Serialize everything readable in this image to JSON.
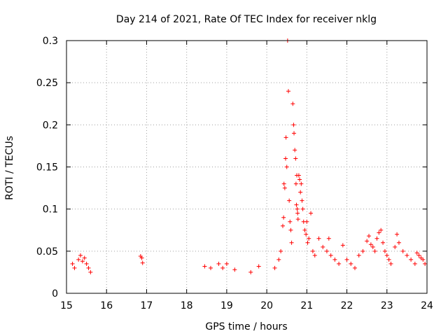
{
  "chart_data": {
    "type": "scatter",
    "title": "Day 214 of 2021, Rate Of TEC Index for receiver nklg",
    "xlabel": "GPS time / hours",
    "ylabel": "ROTI / TECUs",
    "xlim": [
      15,
      24
    ],
    "ylim": [
      0,
      0.3
    ],
    "x_ticks": [
      15,
      16,
      17,
      18,
      19,
      20,
      21,
      22,
      23,
      24
    ],
    "x_tick_labels": [
      "15",
      "16",
      "17",
      "18",
      "19",
      "20",
      "21",
      "22",
      "23",
      "24"
    ],
    "y_ticks": [
      0,
      0.05,
      0.1,
      0.15,
      0.2,
      0.25,
      0.3
    ],
    "y_tick_labels": [
      "0",
      "0.05",
      "0.1",
      "0.15",
      "0.2",
      "0.25",
      "0.3"
    ],
    "grid": true,
    "marker": "+",
    "color": "#ff0000",
    "series": [
      {
        "name": "ROTI",
        "points": [
          [
            15.15,
            0.035
          ],
          [
            15.2,
            0.03
          ],
          [
            15.3,
            0.04
          ],
          [
            15.35,
            0.045
          ],
          [
            15.4,
            0.038
          ],
          [
            15.45,
            0.042
          ],
          [
            15.5,
            0.035
          ],
          [
            15.55,
            0.03
          ],
          [
            15.6,
            0.025
          ],
          [
            16.85,
            0.044
          ],
          [
            16.88,
            0.042
          ],
          [
            16.9,
            0.036
          ],
          [
            18.45,
            0.032
          ],
          [
            18.6,
            0.03
          ],
          [
            18.8,
            0.035
          ],
          [
            18.9,
            0.03
          ],
          [
            19.0,
            0.035
          ],
          [
            19.2,
            0.028
          ],
          [
            19.6,
            0.025
          ],
          [
            19.8,
            0.032
          ],
          [
            20.2,
            0.03
          ],
          [
            20.3,
            0.04
          ],
          [
            20.35,
            0.05
          ],
          [
            20.4,
            0.08
          ],
          [
            20.42,
            0.09
          ],
          [
            20.43,
            0.13
          ],
          [
            20.45,
            0.125
          ],
          [
            20.47,
            0.16
          ],
          [
            20.48,
            0.185
          ],
          [
            20.5,
            0.15
          ],
          [
            20.52,
            0.3
          ],
          [
            20.54,
            0.24
          ],
          [
            20.56,
            0.11
          ],
          [
            20.58,
            0.085
          ],
          [
            20.6,
            0.075
          ],
          [
            20.62,
            0.06
          ],
          [
            20.65,
            0.225
          ],
          [
            20.67,
            0.2
          ],
          [
            20.68,
            0.19
          ],
          [
            20.7,
            0.17
          ],
          [
            20.72,
            0.16
          ],
          [
            20.73,
            0.13
          ],
          [
            20.74,
            0.105
          ],
          [
            20.75,
            0.14
          ],
          [
            20.76,
            0.1
          ],
          [
            20.77,
            0.095
          ],
          [
            20.78,
            0.088
          ],
          [
            20.8,
            0.14
          ],
          [
            20.82,
            0.135
          ],
          [
            20.84,
            0.12
          ],
          [
            20.86,
            0.13
          ],
          [
            20.88,
            0.11
          ],
          [
            20.9,
            0.1
          ],
          [
            20.92,
            0.085
          ],
          [
            20.95,
            0.075
          ],
          [
            20.98,
            0.07
          ],
          [
            21.0,
            0.085
          ],
          [
            21.02,
            0.06
          ],
          [
            21.05,
            0.065
          ],
          [
            21.1,
            0.095
          ],
          [
            21.15,
            0.05
          ],
          [
            21.2,
            0.045
          ],
          [
            21.3,
            0.065
          ],
          [
            21.4,
            0.055
          ],
          [
            21.5,
            0.05
          ],
          [
            21.55,
            0.065
          ],
          [
            21.6,
            0.045
          ],
          [
            21.7,
            0.04
          ],
          [
            21.8,
            0.035
          ],
          [
            21.9,
            0.057
          ],
          [
            22.0,
            0.04
          ],
          [
            22.1,
            0.035
          ],
          [
            22.2,
            0.03
          ],
          [
            22.3,
            0.045
          ],
          [
            22.4,
            0.05
          ],
          [
            22.5,
            0.062
          ],
          [
            22.55,
            0.068
          ],
          [
            22.6,
            0.058
          ],
          [
            22.65,
            0.055
          ],
          [
            22.7,
            0.05
          ],
          [
            22.75,
            0.065
          ],
          [
            22.8,
            0.072
          ],
          [
            22.85,
            0.075
          ],
          [
            22.9,
            0.06
          ],
          [
            22.95,
            0.05
          ],
          [
            23.0,
            0.045
          ],
          [
            23.05,
            0.04
          ],
          [
            23.1,
            0.035
          ],
          [
            23.2,
            0.055
          ],
          [
            23.25,
            0.07
          ],
          [
            23.3,
            0.06
          ],
          [
            23.4,
            0.05
          ],
          [
            23.5,
            0.045
          ],
          [
            23.6,
            0.04
          ],
          [
            23.7,
            0.035
          ],
          [
            23.75,
            0.048
          ],
          [
            23.8,
            0.045
          ],
          [
            23.85,
            0.042
          ],
          [
            23.9,
            0.04
          ],
          [
            23.95,
            0.035
          ]
        ]
      }
    ]
  }
}
